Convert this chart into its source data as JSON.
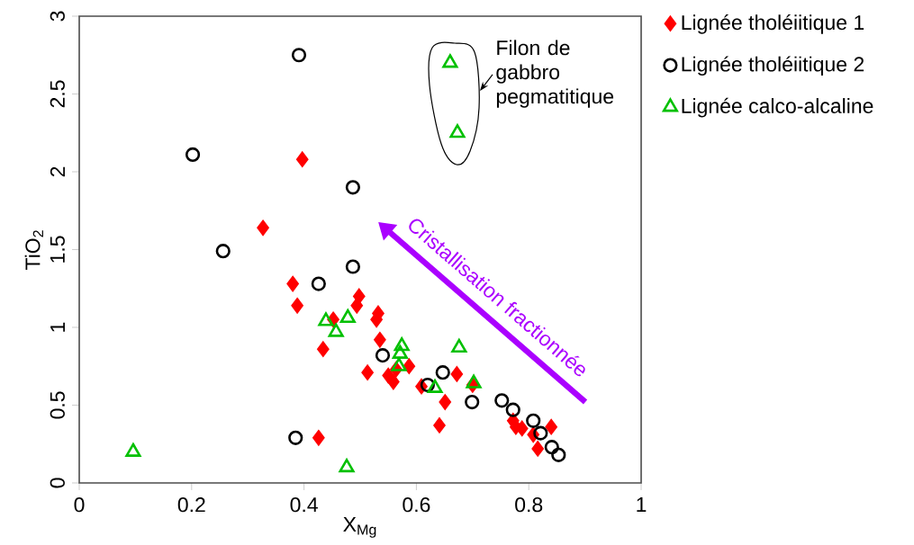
{
  "chart_data": {
    "type": "scatter",
    "xlabel": "X$_{Mg}$",
    "ylabel": "TiO$_{2}$",
    "xlim": [
      0,
      1
    ],
    "ylim": [
      0,
      3
    ],
    "xticks": [
      0,
      0.2,
      0.4,
      0.6,
      0.8,
      1
    ],
    "yticks": [
      0,
      0.5,
      1,
      1.5,
      2,
      2.5,
      3
    ],
    "legend": "right",
    "series": [
      {
        "name": "Lignée tholéiitique 1",
        "color": "#ff0000",
        "marker": "diamond",
        "x": [
          0.397,
          0.327,
          0.38,
          0.388,
          0.434,
          0.426,
          0.452,
          0.498,
          0.494,
          0.532,
          0.529,
          0.535,
          0.513,
          0.55,
          0.564,
          0.587,
          0.559,
          0.609,
          0.651,
          0.641,
          0.672,
          0.7,
          0.772,
          0.788,
          0.808,
          0.84,
          0.816,
          0.777
        ],
        "values": [
          2.08,
          1.64,
          1.28,
          1.14,
          0.86,
          0.29,
          1.05,
          1.2,
          1.14,
          1.09,
          1.05,
          0.92,
          0.71,
          0.69,
          0.73,
          0.75,
          0.65,
          0.62,
          0.52,
          0.37,
          0.7,
          0.63,
          0.4,
          0.35,
          0.31,
          0.36,
          0.22,
          0.36
        ]
      },
      {
        "name": "Lignée tholéiitique 2",
        "color": "#000000",
        "marker": "circle",
        "x": [
          0.391,
          0.202,
          0.256,
          0.487,
          0.487,
          0.426,
          0.385,
          0.54,
          0.647,
          0.62,
          0.699,
          0.752,
          0.772,
          0.808,
          0.821,
          0.841,
          0.853
        ],
        "values": [
          2.75,
          2.11,
          1.49,
          1.9,
          1.39,
          1.28,
          0.29,
          0.82,
          0.71,
          0.63,
          0.52,
          0.53,
          0.47,
          0.4,
          0.32,
          0.23,
          0.18
        ]
      },
      {
        "name": "Lignée calco-alcaline",
        "color": "#00c000",
        "marker": "triangle",
        "x": [
          0.096,
          0.476,
          0.439,
          0.457,
          0.478,
          0.574,
          0.571,
          0.569,
          0.633,
          0.676,
          0.702,
          0.66,
          0.673
        ],
        "values": [
          0.2,
          0.1,
          1.04,
          0.97,
          1.06,
          0.88,
          0.83,
          0.75,
          0.61,
          0.87,
          0.64,
          2.7,
          2.25
        ]
      }
    ],
    "annotations": [
      "Filon de gabbro pegmatitique",
      "Cristallisation fractionnée"
    ]
  }
}
